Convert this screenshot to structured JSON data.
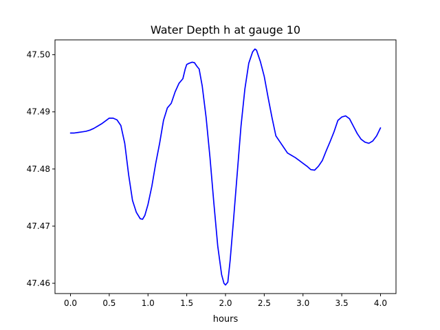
{
  "chart_data": {
    "type": "line",
    "title": "Water Depth h at gauge 10",
    "xlabel": "hours",
    "ylabel": "",
    "xlim": [
      -0.2,
      4.2
    ],
    "ylim": [
      47.4582,
      47.5026
    ],
    "xticks": [
      0.0,
      0.5,
      1.0,
      1.5,
      2.0,
      2.5,
      3.0,
      3.5,
      4.0
    ],
    "xtick_labels": [
      "0.0",
      "0.5",
      "1.0",
      "1.5",
      "2.0",
      "2.5",
      "3.0",
      "3.5",
      "4.0"
    ],
    "yticks": [
      47.46,
      47.47,
      47.48,
      47.49,
      47.5
    ],
    "ytick_labels": [
      "47.46",
      "47.47",
      "47.48",
      "47.49",
      "47.50"
    ],
    "grid": false,
    "series": [
      {
        "color": "#0000ff",
        "x": [
          0.0,
          0.05,
          0.1,
          0.15,
          0.2,
          0.25,
          0.3,
          0.35,
          0.4,
          0.45,
          0.5,
          0.55,
          0.6,
          0.65,
          0.7,
          0.75,
          0.8,
          0.85,
          0.9,
          0.93,
          0.96,
          1.0,
          1.05,
          1.1,
          1.15,
          1.2,
          1.25,
          1.3,
          1.35,
          1.4,
          1.45,
          1.48,
          1.5,
          1.53,
          1.57,
          1.6,
          1.63,
          1.66,
          1.7,
          1.75,
          1.8,
          1.85,
          1.9,
          1.95,
          1.98,
          2.0,
          2.03,
          2.06,
          2.1,
          2.15,
          2.2,
          2.25,
          2.3,
          2.35,
          2.38,
          2.4,
          2.45,
          2.5,
          2.55,
          2.6,
          2.65,
          2.7,
          2.75,
          2.8,
          2.85,
          2.9,
          2.95,
          3.0,
          3.05,
          3.1,
          3.15,
          3.2,
          3.25,
          3.3,
          3.35,
          3.4,
          3.45,
          3.5,
          3.55,
          3.6,
          3.65,
          3.7,
          3.75,
          3.8,
          3.85,
          3.9,
          3.95,
          4.0
        ],
        "y": [
          47.4863,
          47.4863,
          47.4864,
          47.4865,
          47.4866,
          47.4868,
          47.4871,
          47.4875,
          47.4879,
          47.4884,
          47.4889,
          47.4889,
          47.4886,
          47.4876,
          47.4845,
          47.479,
          47.4745,
          47.4724,
          47.4713,
          47.4712,
          47.4719,
          47.4738,
          47.477,
          47.481,
          47.4845,
          47.4885,
          47.4907,
          47.4915,
          47.4935,
          47.495,
          47.4958,
          47.4975,
          47.4983,
          47.4985,
          47.4987,
          47.4986,
          47.498,
          47.4975,
          47.4945,
          47.489,
          47.482,
          47.474,
          47.4665,
          47.4615,
          47.46,
          47.4597,
          47.4602,
          47.464,
          47.4705,
          47.479,
          47.4875,
          47.494,
          47.4985,
          47.5005,
          47.501,
          47.5008,
          47.4988,
          47.4962,
          47.4925,
          47.489,
          47.4858,
          47.4848,
          47.4838,
          47.4828,
          47.4824,
          47.482,
          47.4815,
          47.481,
          47.4805,
          47.4799,
          47.4798,
          47.4805,
          47.4815,
          47.4832,
          47.4848,
          47.4865,
          47.4885,
          47.4891,
          47.4893,
          47.4888,
          47.4875,
          47.4862,
          47.4852,
          47.4847,
          47.4845,
          47.4849,
          47.4858,
          47.4872
        ]
      }
    ]
  }
}
